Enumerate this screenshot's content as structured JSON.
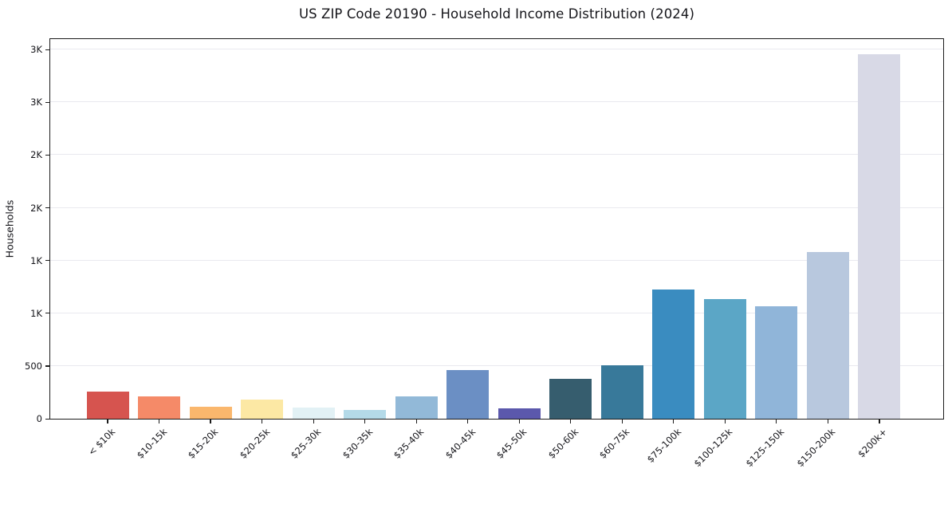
{
  "title": "US ZIP Code 20190 - Household Income Distribution (2024)",
  "chart_data": {
    "type": "bar",
    "title": "US ZIP Code 20190 - Household Income Distribution (2024)",
    "xlabel": "",
    "ylabel": "Households",
    "legend": "none",
    "grid": "horizontal",
    "background_color": "#ffffff",
    "gridline_color": "#e9e9ef",
    "axis_border_color": "#1c1c1c",
    "text_color": "#15151a",
    "ylim": [
      0,
      3600
    ],
    "yticks": {
      "values": [
        0,
        500,
        1000,
        1500,
        2000,
        2500,
        3000,
        3500
      ],
      "labels": [
        "0",
        "500",
        "1K",
        "1K",
        "2K",
        "2K",
        "3K",
        "3K"
      ]
    },
    "categories": [
      "< $10k",
      "$10-15k",
      "$15-20k",
      "$20-25k",
      "$25-30k",
      "$30-35k",
      "$35-40k",
      "$40-45k",
      "$45-50k",
      "$50-60k",
      "$60-75k",
      "$75-100k",
      "$100-125k",
      "$125-150k",
      "$150-200k",
      "$200k+"
    ],
    "values": [
      255,
      210,
      110,
      180,
      105,
      80,
      215,
      465,
      100,
      375,
      510,
      1225,
      1135,
      1065,
      1580,
      3460
    ],
    "bar_colors": [
      "#d6544f",
      "#f58a68",
      "#fab76d",
      "#fce8a4",
      "#e2f1f5",
      "#b4dae8",
      "#92b9d8",
      "#6b8fc4",
      "#5b58ac",
      "#365d6e",
      "#38799a",
      "#3a8cc0",
      "#5ba6c6",
      "#90b5d9",
      "#b8c8de",
      "#d8d9e6"
    ]
  }
}
